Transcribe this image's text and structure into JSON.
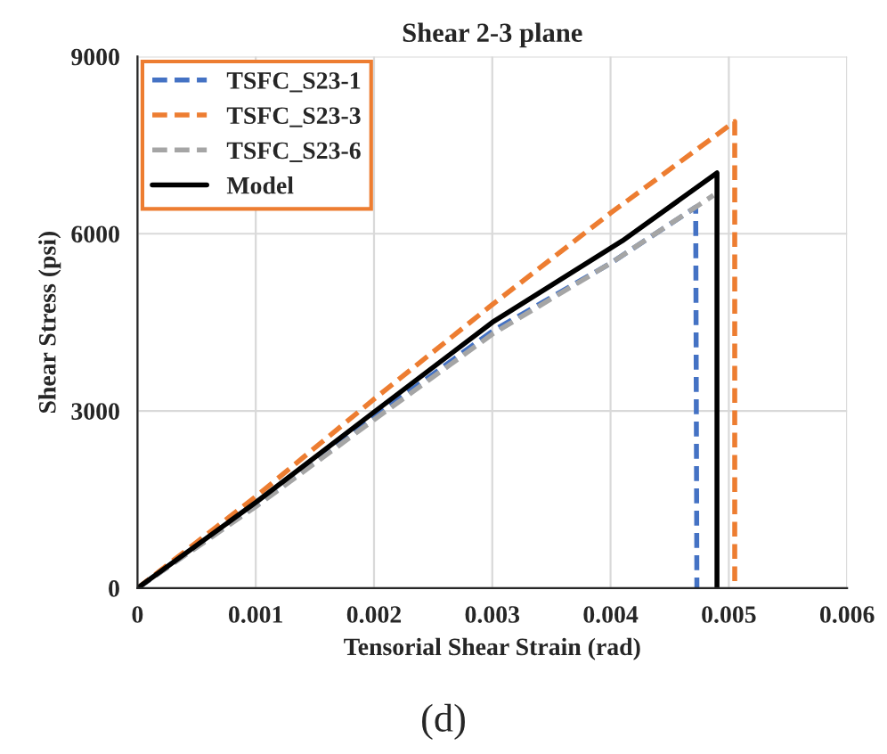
{
  "chart_data": {
    "type": "line",
    "title": "Shear 2-3 plane",
    "xlabel": "Tensorial Shear Strain (rad)",
    "ylabel": "Shear Stress (psi)",
    "xlim": [
      0,
      0.006
    ],
    "xticks": [
      0,
      0.001,
      0.002,
      0.003,
      0.004,
      0.005,
      0.006
    ],
    "ylim": [
      0,
      9000
    ],
    "yticks": [
      0,
      3000,
      6000,
      9000
    ],
    "grid": true,
    "legend": "top left",
    "annotations": [
      "(d)"
    ],
    "series": [
      {
        "name": "TSFC_S23-1",
        "color": "#4472c4",
        "line_style": "dashed",
        "x": [
          0,
          0.001,
          0.002,
          0.003,
          0.004,
          0.00472,
          0.00473
        ],
        "values": [
          0,
          1400,
          2900,
          4350,
          5500,
          6450,
          0
        ]
      },
      {
        "name": "TSFC_S23-3",
        "color": "#ed7d31",
        "line_style": "dashed",
        "x": [
          0,
          0.001,
          0.002,
          0.003,
          0.004,
          0.00505,
          0.00505
        ],
        "values": [
          0,
          1550,
          3200,
          4800,
          6350,
          7900,
          0
        ]
      },
      {
        "name": "TSFC_S23-6",
        "color": "#a5a5a5",
        "line_style": "dashed",
        "x": [
          0,
          0.001,
          0.002,
          0.003,
          0.004,
          0.00487
        ],
        "values": [
          0,
          1380,
          2850,
          4300,
          5500,
          6650
        ]
      },
      {
        "name": "Model",
        "color": "#000000",
        "line_style": "solid",
        "x": [
          0,
          0.001,
          0.002,
          0.003,
          0.0041,
          0.0049,
          0.0049
        ],
        "values": [
          0,
          1450,
          2980,
          4500,
          5880,
          7030,
          0
        ]
      }
    ]
  }
}
